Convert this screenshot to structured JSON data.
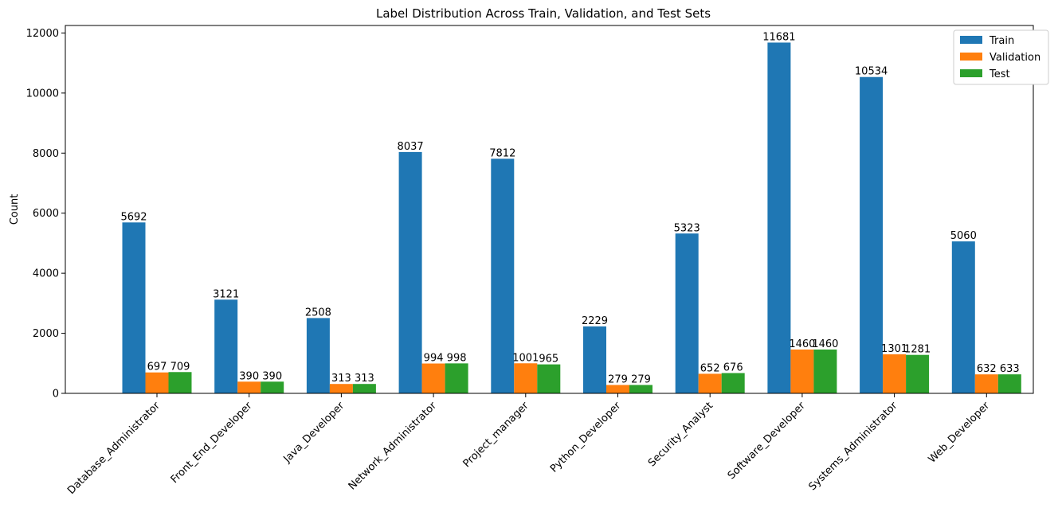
{
  "chart_data": {
    "type": "bar",
    "title": "Label Distribution Across Train, Validation, and Test Sets",
    "xlabel": "",
    "ylabel": "Count",
    "ylim": [
      0,
      12250
    ],
    "yticks": [
      0,
      2000,
      4000,
      6000,
      8000,
      10000,
      12000
    ],
    "grid": false,
    "legend_position": "top-right",
    "categories": [
      "Database_Administrator",
      "Front_End_Developer",
      "Java_Developer",
      "Network_Administrator",
      "Project_manager",
      "Python_Developer",
      "Security_Analyst",
      "Software_Developer",
      "Systems_Administrator",
      "Web_Developer"
    ],
    "series": [
      {
        "name": "Train",
        "color": "#1f77b4",
        "values": [
          5692,
          3121,
          2508,
          8037,
          7812,
          2229,
          5323,
          11681,
          10534,
          5060
        ]
      },
      {
        "name": "Validation",
        "color": "#ff7f0e",
        "values": [
          697,
          390,
          313,
          994,
          1001,
          279,
          652,
          1460,
          1301,
          632
        ]
      },
      {
        "name": "Test",
        "color": "#2ca02c",
        "values": [
          709,
          390,
          313,
          998,
          965,
          279,
          676,
          1460,
          1281,
          633
        ]
      }
    ]
  }
}
